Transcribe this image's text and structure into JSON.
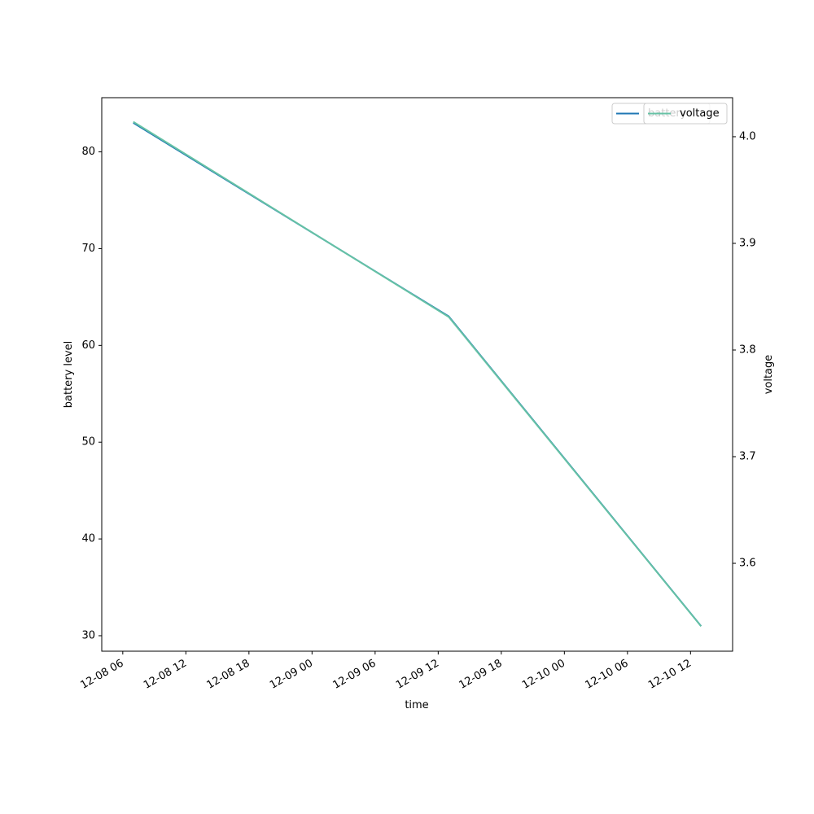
{
  "chart_data": {
    "type": "line",
    "x": [
      "12-08 07",
      "12-09 13",
      "12-10 13"
    ],
    "xlim": [
      "12-08 04",
      "12-10 16"
    ],
    "xticks": [
      "12-08 06",
      "12-08 12",
      "12-08 18",
      "12-09 00",
      "12-09 06",
      "12-09 12",
      "12-09 18",
      "12-10 00",
      "12-10 06",
      "12-10 12"
    ],
    "xlabel": "time",
    "ylabel": "battery level",
    "y2label": "voltage",
    "ylim": [
      28.4,
      85.6
    ],
    "yticks": [
      30,
      40,
      50,
      60,
      70,
      80
    ],
    "y2lim": [
      3.5176,
      4.0366
    ],
    "y2ticks": [
      3.6,
      3.7,
      3.8,
      3.9,
      {
        "value": 4.0,
        "label": "4.0"
      }
    ],
    "series": [
      {
        "name": "battery",
        "color": "#1f77b4",
        "values": [
          83,
          63,
          31
        ]
      },
      {
        "name": "voltage",
        "color": "#66c2a5",
        "axis": "y2",
        "values": [
          4.014,
          3.831,
          3.541
        ]
      }
    ],
    "legend": "upper right"
  }
}
